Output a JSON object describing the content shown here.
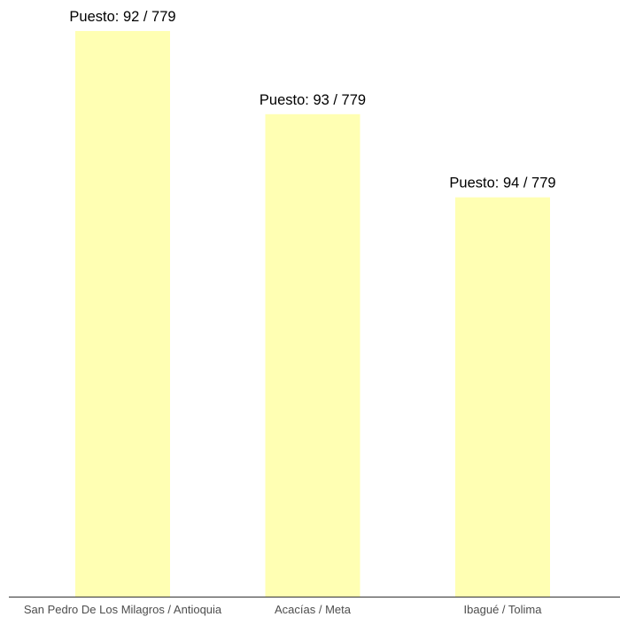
{
  "chart_data": {
    "type": "bar",
    "categories": [
      "San Pedro De Los Milagros / Antioquia",
      "Acacías / Meta",
      "Ibagué / Tolima"
    ],
    "values": [
      687,
      586,
      485
    ],
    "data_labels": [
      "Puesto: 92 / 779",
      "Puesto: 93 / 779",
      "Puesto: 94 / 779"
    ],
    "ylim": [
      0,
      687
    ],
    "y_axis_visible": false,
    "grid": false,
    "legend": "none",
    "title": "",
    "xlabel": "",
    "ylabel": ""
  },
  "colors": {
    "bar": "#ffffb3",
    "axis": "#333333",
    "label": "#000000",
    "tick": "#4d4d4d"
  }
}
